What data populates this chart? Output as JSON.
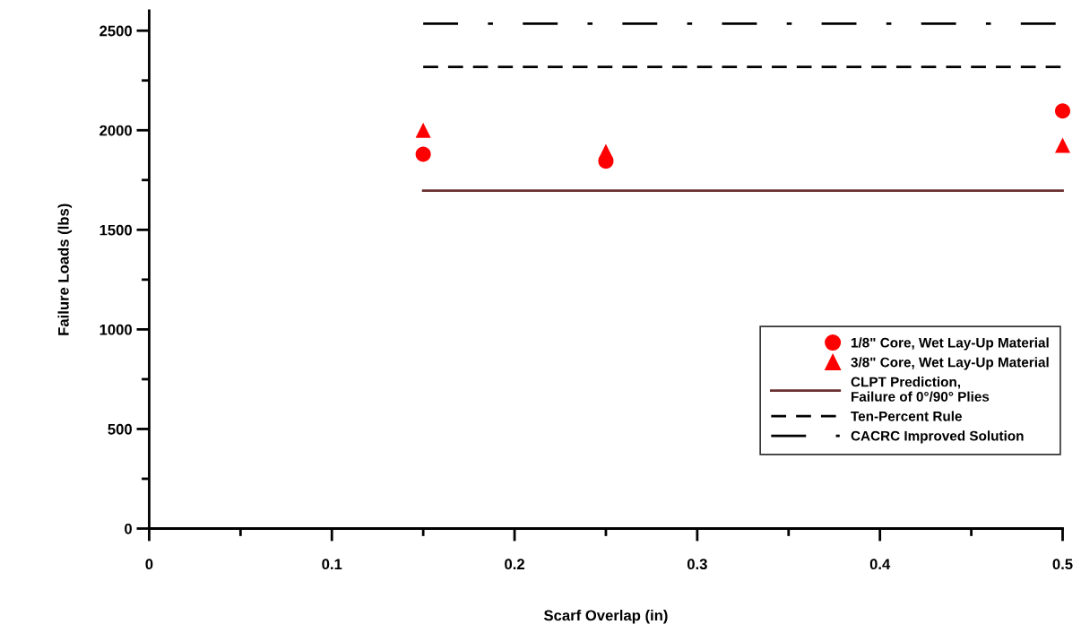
{
  "chart_data": {
    "type": "scatter",
    "xlabel": "Scarf Overlap (in)",
    "ylabel": "Failure Loads (lbs)",
    "xlim": [
      0,
      0.5
    ],
    "ylim": [
      0,
      2600
    ],
    "xticks": [
      0,
      {
        "value": 0.05,
        "label": null
      },
      0.1,
      {
        "value": 0.15,
        "label": null
      },
      0.2,
      {
        "value": 0.25,
        "label": null
      },
      0.3,
      {
        "value": 0.35,
        "label": null
      },
      0.4,
      {
        "value": 0.45,
        "label": null
      },
      0.5
    ],
    "yticks": [
      0,
      {
        "value": 250,
        "label": null
      },
      500,
      {
        "value": 750,
        "label": null
      },
      1000,
      {
        "value": 1250,
        "label": null
      },
      1500,
      {
        "value": 1750,
        "label": null
      },
      2000,
      {
        "value": 2250,
        "label": null
      },
      2500
    ],
    "grid": false,
    "legend": "bottom right",
    "series": [
      {
        "name": "1/8\" Core, Wet Lay-Up Material",
        "type": "scatter",
        "marker": "circle",
        "color": "#ff0000",
        "x": [
          0.15,
          0.25,
          0.5
        ],
        "values": [
          1880,
          1845,
          2097
        ]
      },
      {
        "name": "3/8\" Core, Wet Lay-Up Material",
        "type": "scatter",
        "marker": "triangle",
        "color": "#ff0000",
        "x": [
          0.15,
          0.25,
          0.5
        ],
        "values": [
          2000,
          1893,
          1925
        ]
      },
      {
        "name": "CLPT Prediction,\nFailure of 0°/90° Plies",
        "type": "line",
        "line_style": "solid",
        "color": "#6b3030",
        "x": [
          0.15,
          0.5
        ],
        "values": [
          1697,
          1697
        ]
      },
      {
        "name": "Ten-Percent Rule",
        "type": "line",
        "line_style": "dashed",
        "color": "#000000",
        "x": [
          0.15,
          0.5
        ],
        "values": [
          2318,
          2318
        ]
      },
      {
        "name": "CACRC Improved Solution",
        "type": "line",
        "line_style": "dashdot",
        "color": "#000000",
        "x": [
          0.15,
          0.5
        ],
        "values": [
          2535,
          2535
        ]
      }
    ]
  }
}
